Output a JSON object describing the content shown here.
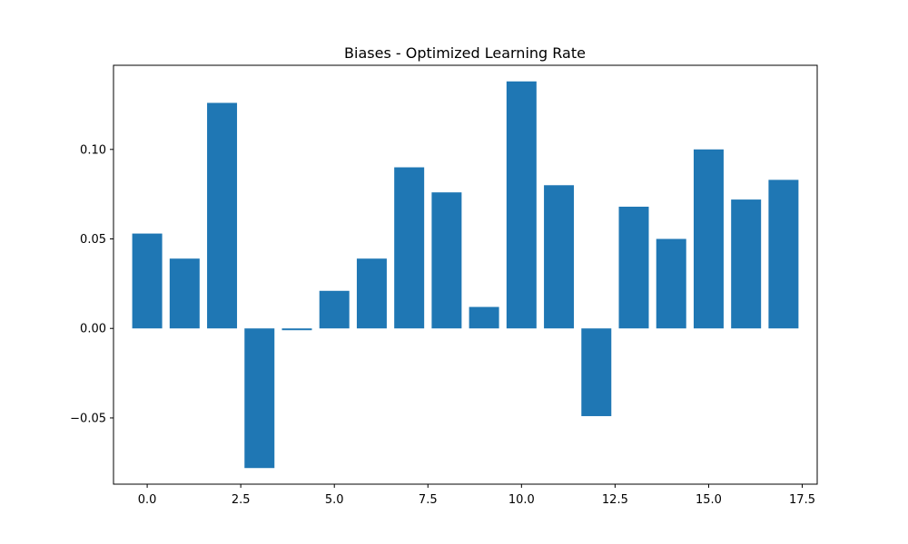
{
  "chart_data": {
    "type": "bar",
    "title": "Biases - Optimized Learning Rate",
    "xlabel": "",
    "ylabel": "",
    "x": [
      0,
      1,
      2,
      3,
      4,
      5,
      6,
      7,
      8,
      9,
      10,
      11,
      12,
      13,
      14,
      15,
      16,
      17
    ],
    "values": [
      0.053,
      0.039,
      0.126,
      -0.078,
      -0.001,
      0.021,
      0.039,
      0.09,
      0.076,
      0.012,
      0.138,
      0.08,
      -0.049,
      0.068,
      0.05,
      0.1,
      0.072,
      0.083
    ],
    "xlim": [
      -0.9,
      17.9
    ],
    "ylim": [
      -0.087,
      0.147
    ],
    "xticks": [
      0.0,
      2.5,
      5.0,
      7.5,
      10.0,
      12.5,
      15.0,
      17.5
    ],
    "xtick_labels": [
      "0.0",
      "2.5",
      "5.0",
      "7.5",
      "10.0",
      "12.5",
      "15.0",
      "17.5"
    ],
    "yticks": [
      -0.05,
      0.0,
      0.05,
      0.1
    ],
    "ytick_labels": [
      "−0.05",
      "0.00",
      "0.05",
      "0.10"
    ],
    "bar_color": "#1f77b4",
    "grid": false,
    "legend": "none"
  }
}
